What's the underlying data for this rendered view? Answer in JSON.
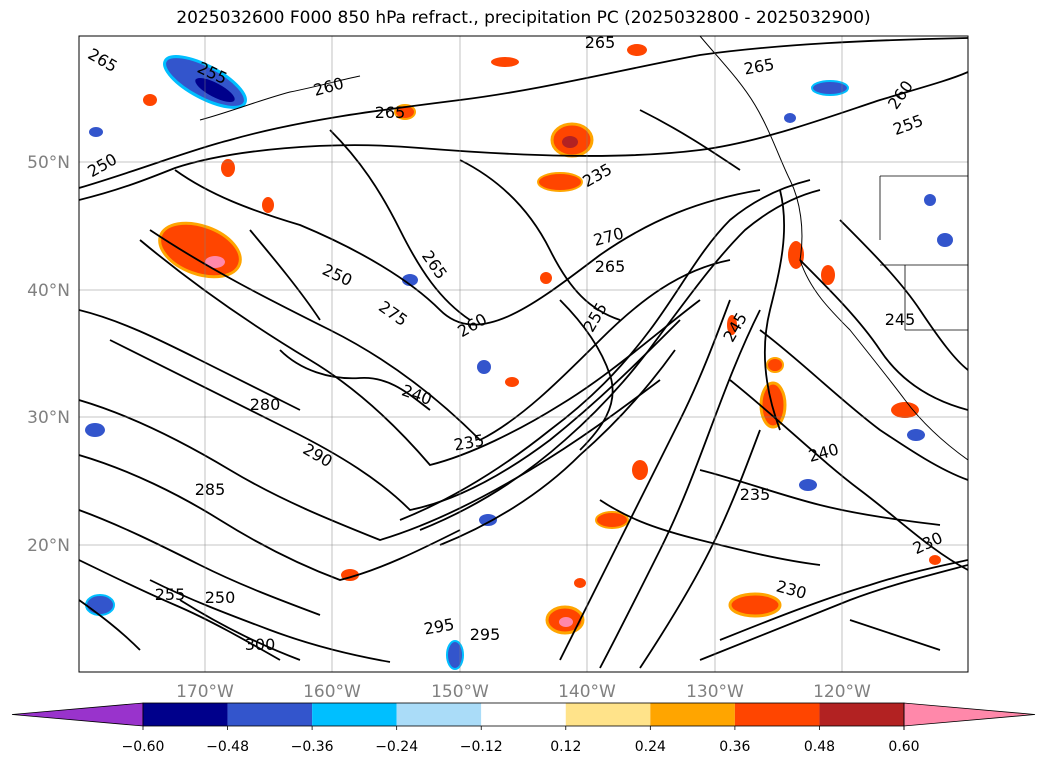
{
  "title": "2025032600 F000 850 hPa refract., precipitation PC (2025032800 - 2025032900)",
  "latitude_labels": [
    "50°N",
    "40°N",
    "30°N",
    "20°N"
  ],
  "longitude_labels": [
    "170°W",
    "160°W",
    "150°W",
    "140°W",
    "130°W",
    "120°W"
  ],
  "colorbar": {
    "ticks": [
      "−0.60",
      "−0.48",
      "−0.36",
      "−0.24",
      "−0.12",
      "0.12",
      "0.24",
      "0.36",
      "0.48",
      "0.60"
    ],
    "colors": [
      "#9933cc",
      "#00008b",
      "#3355cc",
      "#00bfff",
      "#aadcf8",
      "#ffffff",
      "#ffe38a",
      "#ffa500",
      "#ff4500",
      "#b22222",
      "#ff88aa"
    ]
  },
  "contour_labels": [
    "265",
    "265",
    "265",
    "265",
    "260",
    "260",
    "255",
    "255",
    "250",
    "250",
    "275",
    "270",
    "265",
    "265",
    "260",
    "255",
    "245",
    "240",
    "240",
    "235",
    "235",
    "230",
    "230",
    "280",
    "285",
    "290",
    "295",
    "295",
    "300",
    "255",
    "250",
    "245",
    "235"
  ],
  "precip_colors": {
    "red": "#ff4500",
    "orange": "#ffa500",
    "yellow": "#ffe38a",
    "darkred": "#b22222",
    "pink": "#ff88aa",
    "blue": "#3355cc",
    "lightblue": "#00bfff",
    "navy": "#00008b"
  }
}
